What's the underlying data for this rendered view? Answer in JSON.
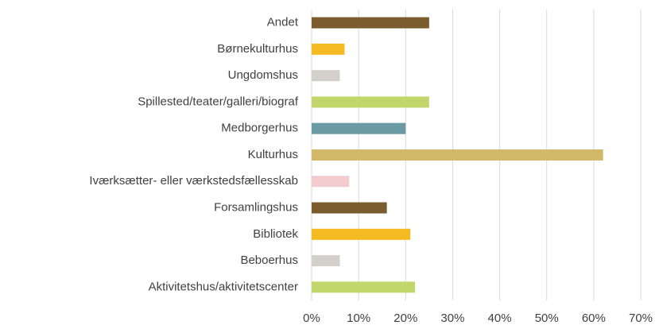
{
  "chart_data": {
    "type": "hbar",
    "categories": [
      "Andet",
      "Børnekulturhus",
      "Ungdomshus",
      "Spillested/teater/galleri/biograf",
      "Medborgerhus",
      "Kulturhus",
      "Iværksætter- eller værkstedsfællesskab",
      "Forsamlingshus",
      "Bibliotek",
      "Beboerhus",
      "Aktivitetshus/aktivitetscenter"
    ],
    "values": [
      25,
      7,
      6,
      25,
      20,
      62,
      8,
      16,
      21,
      6,
      22
    ],
    "colors": [
      "#7a5c2e",
      "#f5b921",
      "#d3cfcb",
      "#c3d66b",
      "#6a9aa4",
      "#d4b86a",
      "#f2cccc",
      "#7a5c2e",
      "#f5b921",
      "#d3cfcb",
      "#c3d66b"
    ],
    "xlim": [
      0,
      70
    ],
    "xticks": [
      {
        "value": 0,
        "label": "0%"
      },
      {
        "value": 10,
        "label": "10%"
      },
      {
        "value": 20,
        "label": "20%"
      },
      {
        "value": 30,
        "label": "30%"
      },
      {
        "value": 40,
        "label": "40%"
      },
      {
        "value": 50,
        "label": "50%"
      },
      {
        "value": 60,
        "label": "60%"
      },
      {
        "value": 70,
        "label": "70%"
      }
    ],
    "grid": true
  }
}
